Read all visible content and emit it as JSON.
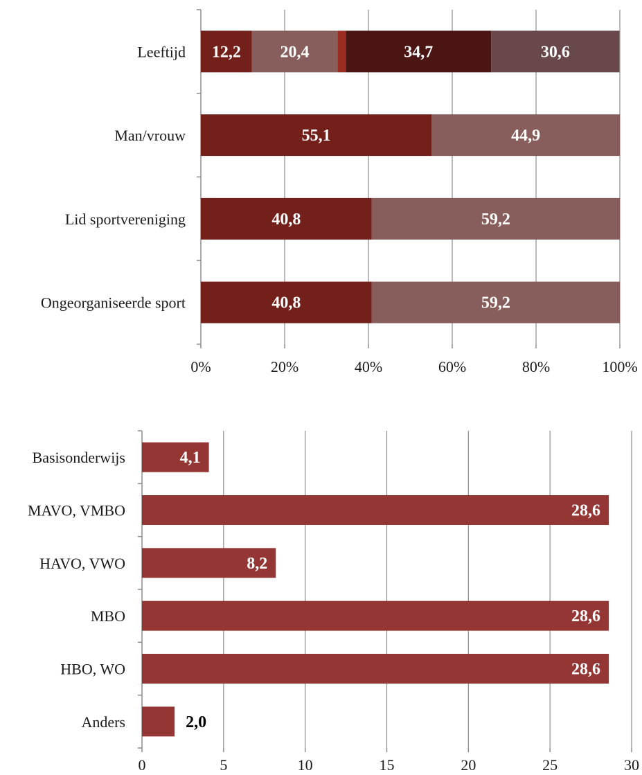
{
  "chart_data": [
    {
      "type": "bar",
      "orientation": "horizontal",
      "stacked": true,
      "percent": true,
      "categories": [
        "Leeftijd",
        "Man/vrouw",
        "Lid sportvereniging",
        "Ongeorganiseerde sport"
      ],
      "series": [
        {
          "values": [
            12.2,
            55.1,
            40.8,
            40.8
          ],
          "labels": [
            "12,2",
            "55,1",
            "40,8",
            "40,8"
          ],
          "color": "#722019"
        },
        {
          "values": [
            20.4,
            44.9,
            59.2,
            59.2
          ],
          "labels": [
            "20,4",
            "44,9",
            "59,2",
            "59,2"
          ],
          "color": "#875e5c"
        },
        {
          "values": [
            2.0,
            0,
            0,
            0
          ],
          "labels": [
            "",
            "",
            "",
            ""
          ],
          "color": "#9b2c22"
        },
        {
          "values": [
            34.7,
            0,
            0,
            0
          ],
          "labels": [
            "34,7",
            "",
            "",
            ""
          ],
          "color": "#4a1513"
        },
        {
          "values": [
            30.6,
            0,
            0,
            0
          ],
          "labels": [
            "30,6",
            "",
            "",
            ""
          ],
          "color": "#68484a"
        }
      ],
      "xlim": [
        0,
        100
      ],
      "xticks": [
        "0%",
        "20%",
        "40%",
        "60%",
        "80%",
        "100%"
      ],
      "grid": true,
      "legend": "none"
    },
    {
      "type": "bar",
      "orientation": "horizontal",
      "categories": [
        "Basisonderwijs",
        "MAVO, VMBO",
        "HAVO, VWO",
        "MBO",
        "HBO, WO",
        "Anders"
      ],
      "values": [
        4.1,
        28.6,
        8.2,
        28.6,
        28.6,
        2.0
      ],
      "labels": [
        "4,1",
        "28,6",
        "8,2",
        "28,6",
        "28,6",
        "2,0"
      ],
      "color": "#943634",
      "xlim": [
        0,
        30
      ],
      "xticks": [
        "0",
        "5",
        "10",
        "15",
        "20",
        "25",
        "30"
      ],
      "grid": true,
      "legend": "none"
    }
  ]
}
